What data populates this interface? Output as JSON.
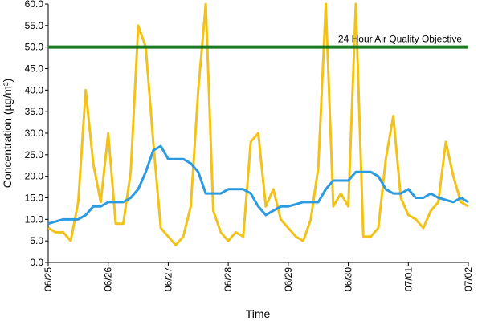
{
  "chart_data": {
    "type": "line",
    "x_label": "Time",
    "y_label": "Concentration (µg/m³)",
    "xlim": [
      0,
      7
    ],
    "xticks": [
      {
        "value": 0,
        "label": "06/25"
      },
      {
        "value": 1,
        "label": "06/26"
      },
      {
        "value": 2,
        "label": "06/27"
      },
      {
        "value": 3,
        "label": "06/28"
      },
      {
        "value": 4,
        "label": "06/29"
      },
      {
        "value": 5,
        "label": "06/30"
      },
      {
        "value": 6,
        "label": "07/01"
      },
      {
        "value": 7,
        "label": "07/02"
      }
    ],
    "ylim": [
      0,
      60
    ],
    "yticks": [
      {
        "value": 0,
        "label": "0.0"
      },
      {
        "value": 5,
        "label": "5.0"
      },
      {
        "value": 10,
        "label": "10.0"
      },
      {
        "value": 15,
        "label": "15.0"
      },
      {
        "value": 20,
        "label": "20.0"
      },
      {
        "value": 25,
        "label": "25.0"
      },
      {
        "value": 30,
        "label": "30.0"
      },
      {
        "value": 35,
        "label": "35.0"
      },
      {
        "value": 40,
        "label": "40.0"
      },
      {
        "value": 45,
        "label": "45.0"
      },
      {
        "value": 50,
        "label": "50.0"
      },
      {
        "value": 55,
        "label": "55.0"
      },
      {
        "value": 60,
        "label": "60.0"
      }
    ],
    "objective": {
      "value": 50,
      "label": "24 Hour Air Quality Objective",
      "color": "#1e7a1e"
    },
    "series": [
      {
        "color": "#f2c21b",
        "x": [
          0,
          0.125,
          0.25,
          0.375,
          0.5,
          0.625,
          0.75,
          0.875,
          1,
          1.125,
          1.25,
          1.375,
          1.5,
          1.625,
          1.75,
          1.875,
          2,
          2.125,
          2.25,
          2.375,
          2.5,
          2.625,
          2.75,
          2.875,
          3,
          3.125,
          3.25,
          3.375,
          3.5,
          3.625,
          3.75,
          3.875,
          4,
          4.125,
          4.25,
          4.375,
          4.5,
          4.625,
          4.75,
          4.875,
          5,
          5.125,
          5.25,
          5.375,
          5.5,
          5.625,
          5.75,
          5.875,
          6,
          6.125,
          6.25,
          6.375,
          6.5,
          6.625,
          6.75,
          6.875,
          7
        ],
        "values": [
          8,
          7,
          7,
          5,
          14,
          40,
          23,
          14,
          30,
          9,
          9,
          21,
          55,
          50,
          28,
          8,
          6,
          4,
          6,
          13,
          40,
          60,
          12,
          7,
          5,
          7,
          6,
          28,
          30,
          13,
          17,
          10,
          8,
          6,
          5,
          10,
          22,
          60,
          13,
          16,
          13,
          60,
          6,
          6,
          8,
          24,
          34,
          15,
          11,
          10,
          8,
          12,
          14,
          28,
          20,
          14,
          13
        ]
      },
      {
        "color": "#2b9ae0",
        "x": [
          0,
          0.25,
          0.5,
          0.625,
          0.75,
          0.875,
          1,
          1.25,
          1.375,
          1.5,
          1.625,
          1.75,
          1.875,
          2,
          2.25,
          2.375,
          2.5,
          2.625,
          2.875,
          3,
          3.25,
          3.375,
          3.5,
          3.625,
          3.75,
          3.875,
          4,
          4.25,
          4.5,
          4.625,
          4.75,
          5,
          5.125,
          5.375,
          5.5,
          5.625,
          5.75,
          5.875,
          6,
          6.125,
          6.25,
          6.375,
          6.5,
          6.75,
          6.875,
          7
        ],
        "values": [
          9,
          10,
          10,
          11,
          13,
          13,
          14,
          14,
          15,
          17,
          21,
          26,
          27,
          24,
          24,
          23,
          21,
          16,
          16,
          17,
          17,
          16,
          13,
          11,
          12,
          13,
          13,
          14,
          14,
          17,
          19,
          19,
          21,
          21,
          20,
          17,
          16,
          16,
          17,
          15,
          15,
          16,
          15,
          14,
          15,
          14
        ]
      }
    ]
  }
}
